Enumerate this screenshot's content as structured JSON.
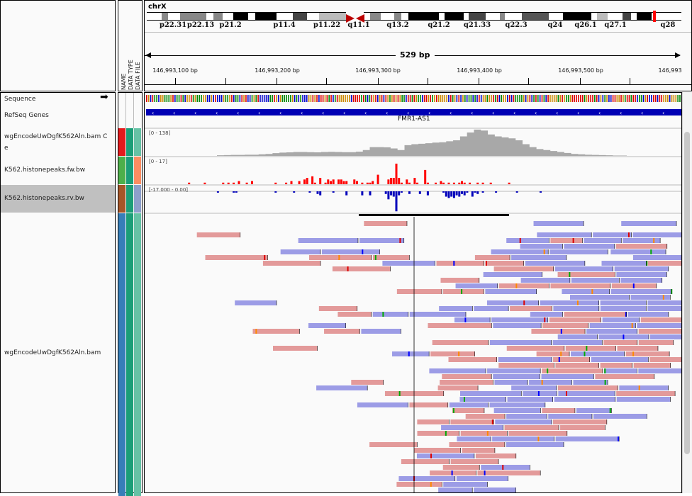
{
  "header": {
    "chromosome": "chrX",
    "span": "529 bp",
    "cytobands": [
      "p22.31",
      "p22.13",
      "p21.2",
      "p11.4",
      "p11.22",
      "q11.1",
      "q13.2",
      "q21.2",
      "q21.33",
      "q22.3",
      "q24",
      "q26.1",
      "q27.1",
      "q28"
    ],
    "ruler": [
      "146,993,100 bp",
      "146,993,200 bp",
      "146,993,300 bp",
      "146,993,400 bp",
      "146,993,500 bp",
      "146,993"
    ]
  },
  "attributes": {
    "headers": [
      "NAME",
      "DATA TYPE",
      "DATA FILE"
    ]
  },
  "tracks": [
    {
      "name": "Sequence"
    },
    {
      "name": "RefSeq Genes",
      "gene": "FMR1-AS1"
    },
    {
      "name": "wgEncodeUwDgfK562Aln.bam C",
      "name2": "e",
      "range": "[0 - 138]",
      "colors": [
        "#e41a1c",
        "#1b9e77",
        "#66c2a5"
      ]
    },
    {
      "name": "K562.histonepeaks.fw.bw",
      "range": "[0 - 17]",
      "colors": [
        "#4daf4a",
        "#1b9e77",
        "#fc8d62"
      ]
    },
    {
      "name": "K562.histonepeaks.rv.bw",
      "range": "[-17.000 - 0.00]",
      "colors": [
        "#a65628",
        "#1b9e77",
        "#8da0cb"
      ],
      "selected": true
    },
    {
      "name": "wgEncodeUwDgfK562Aln.bam",
      "colors": [
        "#377eb8",
        "#1b9e77",
        "#66c2a5"
      ]
    }
  ],
  "coverage": [
    3,
    4,
    5,
    5,
    6,
    6,
    8,
    10,
    14,
    17,
    18,
    20,
    20,
    19,
    18,
    20,
    21,
    20,
    19,
    19,
    22,
    30,
    45,
    45,
    44,
    38,
    30,
    55,
    60,
    62,
    65,
    68,
    70,
    75,
    80,
    100,
    120,
    135,
    130,
    110,
    100,
    95,
    90,
    80,
    60,
    45,
    35,
    30,
    25,
    20,
    15,
    10,
    8,
    6,
    5,
    4,
    3,
    2,
    2
  ],
  "fw": [
    [
      16,
      1
    ],
    [
      22,
      1
    ],
    [
      29,
      1
    ],
    [
      31,
      1
    ],
    [
      33,
      1
    ],
    [
      35,
      2
    ],
    [
      38,
      1
    ],
    [
      40,
      2
    ],
    [
      49,
      1
    ],
    [
      53,
      1
    ],
    [
      55,
      2
    ],
    [
      58,
      2
    ],
    [
      60,
      3
    ],
    [
      61,
      4
    ],
    [
      63,
      5
    ],
    [
      64,
      1
    ],
    [
      66,
      4
    ],
    [
      68,
      1
    ],
    [
      69,
      3
    ],
    [
      70,
      2
    ],
    [
      71,
      3
    ],
    [
      73,
      3
    ],
    [
      74,
      3
    ],
    [
      75,
      2
    ],
    [
      76,
      2
    ],
    [
      79,
      3
    ],
    [
      80,
      2
    ],
    [
      82,
      1
    ],
    [
      84,
      1
    ],
    [
      85,
      1
    ],
    [
      86,
      2
    ],
    [
      88,
      6
    ],
    [
      92,
      3
    ],
    [
      93,
      4
    ],
    [
      94,
      4
    ],
    [
      95,
      13
    ],
    [
      96,
      4
    ],
    [
      97,
      1
    ],
    [
      99,
      3
    ],
    [
      100,
      1
    ],
    [
      102,
      4
    ],
    [
      103,
      1
    ],
    [
      106,
      9
    ],
    [
      107,
      1
    ],
    [
      110,
      1
    ],
    [
      112,
      2
    ],
    [
      113,
      1
    ],
    [
      115,
      1
    ],
    [
      117,
      1
    ],
    [
      119,
      1
    ],
    [
      120,
      2
    ],
    [
      121,
      1
    ],
    [
      123,
      1
    ],
    [
      126,
      1
    ],
    [
      128,
      1
    ],
    [
      131,
      1
    ],
    [
      138,
      1
    ]
  ],
  "rv": [
    [
      27,
      1
    ],
    [
      33,
      1
    ],
    [
      34,
      1
    ],
    [
      49,
      1
    ],
    [
      56,
      1
    ],
    [
      62,
      1
    ],
    [
      65,
      2
    ],
    [
      66,
      3
    ],
    [
      71,
      1
    ],
    [
      76,
      3
    ],
    [
      82,
      3
    ],
    [
      85,
      3
    ],
    [
      91,
      2
    ],
    [
      92,
      6
    ],
    [
      93,
      3
    ],
    [
      94,
      4
    ],
    [
      95,
      15
    ],
    [
      96,
      3
    ],
    [
      97,
      1
    ],
    [
      100,
      2
    ],
    [
      104,
      2
    ],
    [
      107,
      3
    ],
    [
      113,
      1
    ],
    [
      114,
      4
    ],
    [
      115,
      5
    ],
    [
      116,
      4
    ],
    [
      117,
      5
    ],
    [
      118,
      3
    ],
    [
      119,
      4
    ],
    [
      120,
      2
    ],
    [
      121,
      3
    ],
    [
      122,
      1
    ],
    [
      124,
      4
    ],
    [
      125,
      1
    ],
    [
      126,
      2
    ],
    [
      128,
      1
    ],
    [
      133,
      1
    ],
    [
      141,
      1
    ],
    [
      150,
      1
    ]
  ]
}
